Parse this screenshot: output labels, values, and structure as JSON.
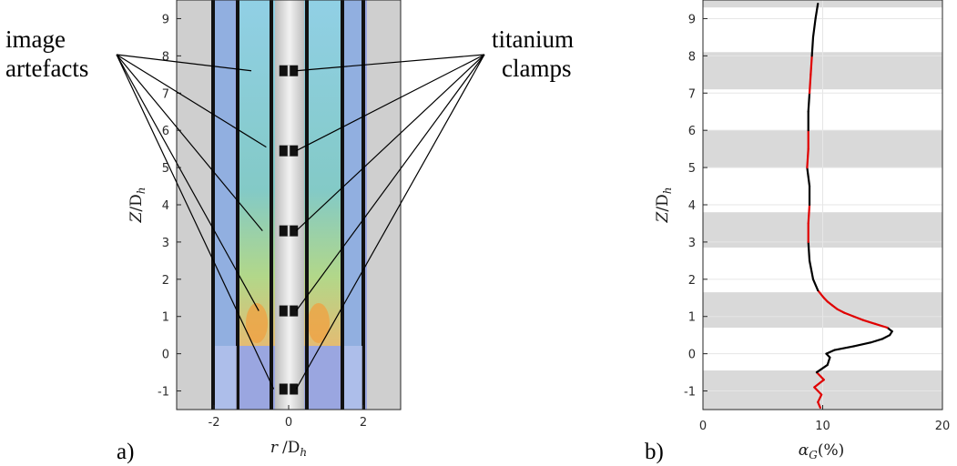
{
  "annotations": {
    "left_line1": "image",
    "left_line2": "artefacts",
    "right_line1": "titanium",
    "right_line2": "clamps"
  },
  "panel_labels": {
    "a": "a)",
    "b": "b)"
  },
  "chart_data": [
    {
      "type": "image",
      "panel": "a",
      "xlabel_var": "r",
      "xlabel_sub": "h",
      "xlabel_unit": "/D",
      "ylabel_var": "Z",
      "ylabel_unit": "/D",
      "ylabel_sub": "h",
      "xlim": [
        -3,
        3
      ],
      "ylim": [
        -1.5,
        9.5
      ],
      "xticks": [
        "-2",
        "0",
        "2"
      ],
      "xtick_values": [
        -2,
        0,
        2
      ],
      "yticks": [
        "-1",
        "0",
        "1",
        "2",
        "3",
        "4",
        "5",
        "6",
        "7",
        "8",
        "9"
      ],
      "ytick_values": [
        -1,
        0,
        1,
        2,
        3,
        4,
        5,
        6,
        7,
        8,
        9
      ],
      "clamp_positions_z": [
        -0.95,
        1.15,
        3.3,
        5.45,
        7.6
      ],
      "artefact_positions": [
        [
          -0.4,
          -0.95
        ],
        [
          -0.8,
          1.15
        ],
        [
          -0.7,
          3.3
        ],
        [
          -0.6,
          5.55
        ],
        [
          -1.0,
          7.6
        ]
      ]
    },
    {
      "type": "line",
      "panel": "b",
      "xlabel_var": "α",
      "xlabel_sub": "G",
      "xlabel_unit": "(%)",
      "ylabel_var": "Z",
      "ylabel_unit": "/D",
      "ylabel_sub": "h",
      "xlim": [
        0,
        20
      ],
      "ylim": [
        -1.5,
        9.5
      ],
      "xticks": [
        "0",
        "10",
        "20"
      ],
      "xtick_values": [
        0,
        10,
        20
      ],
      "yticks": [
        "-1",
        "0",
        "1",
        "2",
        "3",
        "4",
        "5",
        "6",
        "7",
        "8",
        "9"
      ],
      "ytick_values": [
        -1,
        0,
        1,
        2,
        3,
        4,
        5,
        6,
        7,
        8,
        9
      ],
      "grid": true,
      "shaded_bands_z": [
        [
          -1.5,
          -0.45
        ],
        [
          0.7,
          1.65
        ],
        [
          2.85,
          3.8
        ],
        [
          5.0,
          6.0
        ],
        [
          7.1,
          8.1
        ],
        [
          9.3,
          9.5
        ]
      ],
      "series": [
        {
          "color": "#000000",
          "highlight_color": "#e00000",
          "z": [
            -1.45,
            -1.3,
            -1.1,
            -0.9,
            -0.7,
            -0.5,
            -0.3,
            -0.1,
            0.0,
            0.1,
            0.2,
            0.3,
            0.4,
            0.5,
            0.6,
            0.7,
            0.8,
            0.9,
            1.0,
            1.1,
            1.2,
            1.3,
            1.4,
            1.5,
            1.7,
            2.0,
            2.5,
            3.0,
            3.5,
            4.0,
            4.5,
            5.0,
            5.5,
            6.0,
            6.5,
            7.0,
            7.5,
            8.0,
            8.5,
            9.0,
            9.4
          ],
          "alpha": [
            9.8,
            9.6,
            9.9,
            9.3,
            10.1,
            9.5,
            10.4,
            10.6,
            10.3,
            11.0,
            12.6,
            14.0,
            15.0,
            15.6,
            15.8,
            15.4,
            14.4,
            13.4,
            12.6,
            11.8,
            11.2,
            10.8,
            10.4,
            10.1,
            9.6,
            9.2,
            8.9,
            8.8,
            8.8,
            8.9,
            8.9,
            8.7,
            8.8,
            8.8,
            8.8,
            8.9,
            9.0,
            9.1,
            9.2,
            9.4,
            9.6
          ]
        }
      ]
    }
  ]
}
